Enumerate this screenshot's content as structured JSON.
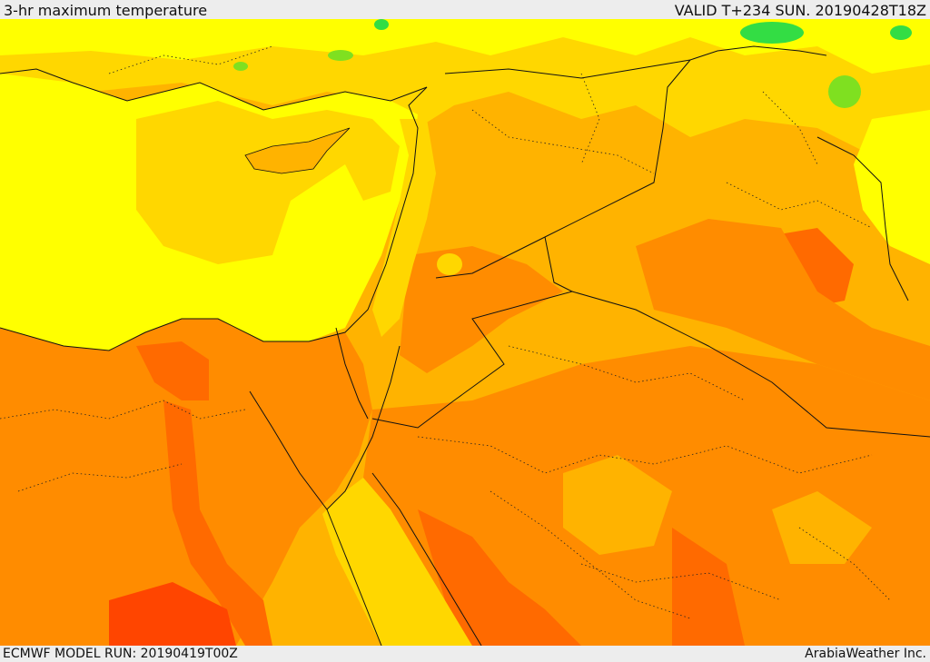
{
  "header": {
    "title": "3-hr maximum temperature",
    "valid_time": "VALID T+234 SUN. 20190428T18Z"
  },
  "footer": {
    "model_run": "ECMWF MODEL RUN: 20190419T00Z",
    "credit": "ArabiaWeather Inc."
  },
  "colors": {
    "sea_yellow": "#ffff00",
    "light_yellow": "#ffd700",
    "gold": "#ffb300",
    "orange": "#ff8c00",
    "dark_orange": "#ff6a00",
    "red_orange": "#ff4500",
    "green": "#33dd44",
    "border_line": "#111111"
  }
}
